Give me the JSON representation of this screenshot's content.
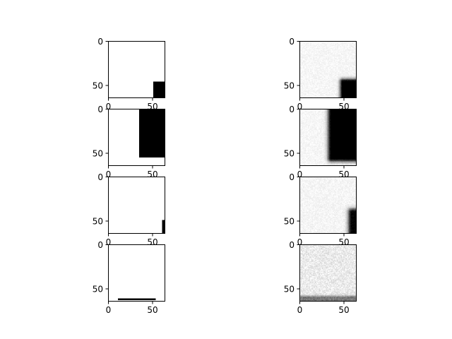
{
  "chart_data": {
    "type": "image-grid",
    "layout": {
      "rows": 4,
      "cols": 2
    },
    "colors": {
      "background": "#ffffff",
      "mark": "#000000",
      "axis": "#000000"
    },
    "panels": [
      {
        "name": "input-1",
        "row": 0,
        "col": 0,
        "xlim": [
          0,
          64
        ],
        "ylim": [
          64,
          0
        ],
        "xticks": [
          0,
          50
        ],
        "yticks": [
          0,
          50
        ],
        "xtick_labels": [
          "0",
          "50"
        ],
        "ytick_labels": [
          "0",
          "50"
        ],
        "blobs": [
          {
            "x0": 51,
            "x1": 64,
            "y0": 46,
            "y1": 64,
            "level": 1.0,
            "blur": 0
          }
        ],
        "noise": 0
      },
      {
        "name": "output-1",
        "row": 0,
        "col": 1,
        "xlim": [
          0,
          64
        ],
        "ylim": [
          64,
          0
        ],
        "xticks": [
          0,
          50
        ],
        "yticks": [
          0,
          50
        ],
        "xtick_labels": [
          "0",
          "50"
        ],
        "ytick_labels": [
          "0",
          "50"
        ],
        "blobs": [
          {
            "x0": 49,
            "x1": 64,
            "y0": 46,
            "y1": 64,
            "level": 1.0,
            "blur": 2.5
          }
        ],
        "noise": 0.07
      },
      {
        "name": "input-2",
        "row": 1,
        "col": 0,
        "xlim": [
          0,
          64
        ],
        "ylim": [
          64,
          0
        ],
        "xticks": [
          0,
          50
        ],
        "yticks": [
          0,
          50
        ],
        "xtick_labels": [
          "0",
          "50"
        ],
        "ytick_labels": [
          "0",
          "50"
        ],
        "blobs": [
          {
            "x0": 35,
            "x1": 64,
            "y0": 0,
            "y1": 55,
            "level": 1.0,
            "blur": 0
          }
        ],
        "noise": 0
      },
      {
        "name": "output-2",
        "row": 1,
        "col": 1,
        "xlim": [
          0,
          64
        ],
        "ylim": [
          64,
          0
        ],
        "xticks": [
          0,
          50
        ],
        "yticks": [
          0,
          50
        ],
        "xtick_labels": [
          "0",
          "50"
        ],
        "ytick_labels": [
          "0",
          "50"
        ],
        "blobs": [
          {
            "x0": 36,
            "x1": 64,
            "y0": 1,
            "y1": 56,
            "level": 1.0,
            "blur": 3
          }
        ],
        "noise": 0.07
      },
      {
        "name": "input-3",
        "row": 2,
        "col": 0,
        "xlim": [
          0,
          64
        ],
        "ylim": [
          64,
          0
        ],
        "xticks": [
          0,
          50
        ],
        "yticks": [
          0,
          50
        ],
        "xtick_labels": [
          "0",
          "50"
        ],
        "ytick_labels": [
          "0",
          "50"
        ],
        "blobs": [
          {
            "x0": 61,
            "x1": 64,
            "y0": 49,
            "y1": 64,
            "level": 1.0,
            "blur": 0
          }
        ],
        "noise": 0
      },
      {
        "name": "output-3",
        "row": 2,
        "col": 1,
        "xlim": [
          0,
          64
        ],
        "ylim": [
          64,
          0
        ],
        "xticks": [
          0,
          50
        ],
        "yticks": [
          0,
          50
        ],
        "xtick_labels": [
          "0",
          "50"
        ],
        "ytick_labels": [
          "0",
          "50"
        ],
        "blobs": [
          {
            "x0": 59,
            "x1": 64,
            "y0": 40,
            "y1": 64,
            "level": 0.95,
            "blur": 3
          }
        ],
        "noise": 0.08
      },
      {
        "name": "input-4",
        "row": 3,
        "col": 0,
        "xlim": [
          0,
          64
        ],
        "ylim": [
          64,
          0
        ],
        "xticks": [
          0,
          50
        ],
        "yticks": [
          0,
          50
        ],
        "xtick_labels": [
          "0",
          "50"
        ],
        "ytick_labels": [
          "0",
          "50"
        ],
        "blobs": [
          {
            "x0": 11,
            "x1": 54,
            "y0": 61,
            "y1": 63,
            "level": 1.0,
            "blur": 0
          }
        ],
        "noise": 0
      },
      {
        "name": "output-4",
        "row": 3,
        "col": 1,
        "xlim": [
          0,
          64
        ],
        "ylim": [
          64,
          0
        ],
        "xticks": [
          0,
          50
        ],
        "yticks": [
          0,
          50
        ],
        "xtick_labels": [
          "0",
          "50"
        ],
        "ytick_labels": [
          "0",
          "50"
        ],
        "blobs": [
          {
            "x0": 2,
            "x1": 64,
            "y0": 60,
            "y1": 64,
            "level": 0.45,
            "blur": 1.5
          }
        ],
        "noise": 0.16
      }
    ]
  }
}
